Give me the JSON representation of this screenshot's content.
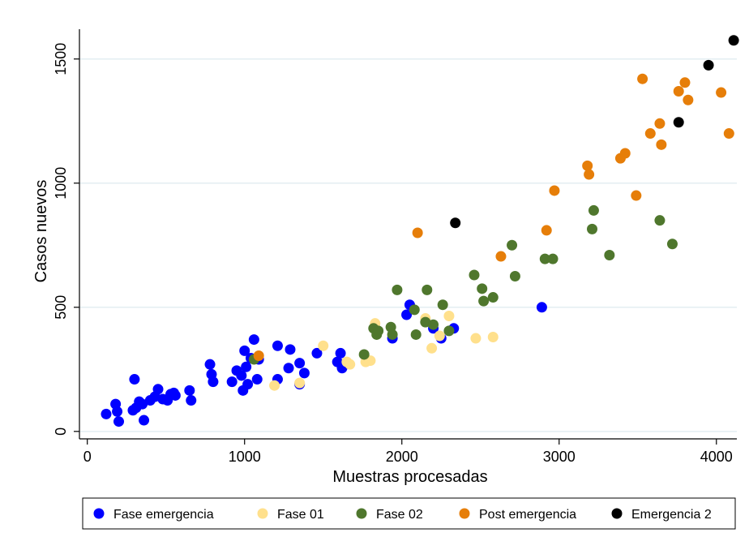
{
  "chart_data": {
    "type": "scatter",
    "title": "",
    "xlabel": "Muestras procesadas",
    "ylabel": "Casos nuevos",
    "xlim": [
      -50,
      4130
    ],
    "ylim": [
      -30,
      1620
    ],
    "x_ticks": [
      0,
      1000,
      2000,
      3000,
      4000
    ],
    "x_tick_labels": [
      "0",
      "1000",
      "2000",
      "3000",
      "4000"
    ],
    "y_ticks": [
      0,
      500,
      1000,
      1500
    ],
    "y_tick_labels": [
      "0",
      "500",
      "1000",
      "1500"
    ],
    "grid": "horizontal",
    "legend_position": "bottom",
    "series": [
      {
        "name": "Fase emergencia",
        "color": "#0000ff",
        "points": [
          [
            120,
            70
          ],
          [
            180,
            110
          ],
          [
            200,
            40
          ],
          [
            190,
            80
          ],
          [
            300,
            210
          ],
          [
            310,
            95
          ],
          [
            330,
            120
          ],
          [
            290,
            85
          ],
          [
            350,
            110
          ],
          [
            360,
            45
          ],
          [
            400,
            125
          ],
          [
            430,
            140
          ],
          [
            450,
            170
          ],
          [
            480,
            130
          ],
          [
            510,
            125
          ],
          [
            530,
            150
          ],
          [
            550,
            155
          ],
          [
            560,
            145
          ],
          [
            650,
            165
          ],
          [
            660,
            125
          ],
          [
            780,
            270
          ],
          [
            790,
            230
          ],
          [
            800,
            200
          ],
          [
            920,
            200
          ],
          [
            950,
            245
          ],
          [
            980,
            225
          ],
          [
            990,
            165
          ],
          [
            1000,
            325
          ],
          [
            1010,
            260
          ],
          [
            1020,
            190
          ],
          [
            1040,
            295
          ],
          [
            1060,
            370
          ],
          [
            1080,
            210
          ],
          [
            1090,
            290
          ],
          [
            1210,
            345
          ],
          [
            1210,
            210
          ],
          [
            1280,
            255
          ],
          [
            1290,
            330
          ],
          [
            1350,
            275
          ],
          [
            1350,
            190
          ],
          [
            1380,
            235
          ],
          [
            1460,
            315
          ],
          [
            1590,
            280
          ],
          [
            1610,
            315
          ],
          [
            1620,
            255
          ],
          [
            1940,
            375
          ],
          [
            2030,
            470
          ],
          [
            2050,
            510
          ],
          [
            2200,
            415
          ],
          [
            2250,
            375
          ],
          [
            2330,
            415
          ],
          [
            2890,
            500
          ]
        ]
      },
      {
        "name": "Fase 01",
        "color": "#ffe08c",
        "points": [
          [
            1190,
            185
          ],
          [
            1350,
            195
          ],
          [
            1500,
            345
          ],
          [
            1650,
            280
          ],
          [
            1670,
            270
          ],
          [
            1770,
            280
          ],
          [
            1800,
            285
          ],
          [
            1830,
            435
          ],
          [
            2150,
            455
          ],
          [
            2190,
            335
          ],
          [
            2240,
            385
          ],
          [
            2300,
            465
          ],
          [
            2470,
            375
          ],
          [
            2580,
            380
          ]
        ]
      },
      {
        "name": "Fase 02",
        "color": "#4f772d",
        "points": [
          [
            1060,
            290
          ],
          [
            1760,
            310
          ],
          [
            1820,
            415
          ],
          [
            1840,
            390
          ],
          [
            1850,
            405
          ],
          [
            1930,
            420
          ],
          [
            1940,
            390
          ],
          [
            1970,
            570
          ],
          [
            2080,
            490
          ],
          [
            2090,
            390
          ],
          [
            2150,
            440
          ],
          [
            2160,
            570
          ],
          [
            2200,
            430
          ],
          [
            2260,
            510
          ],
          [
            2300,
            405
          ],
          [
            2460,
            630
          ],
          [
            2510,
            575
          ],
          [
            2520,
            525
          ],
          [
            2580,
            540
          ],
          [
            2700,
            750
          ],
          [
            2720,
            625
          ],
          [
            2910,
            695
          ],
          [
            2960,
            695
          ],
          [
            3210,
            815
          ],
          [
            3220,
            890
          ],
          [
            3320,
            710
          ],
          [
            3640,
            850
          ],
          [
            3720,
            755
          ]
        ]
      },
      {
        "name": "Post emergencia",
        "color": "#e67e09",
        "points": [
          [
            1090,
            305
          ],
          [
            2100,
            800
          ],
          [
            2630,
            705
          ],
          [
            2920,
            810
          ],
          [
            2970,
            970
          ],
          [
            3180,
            1070
          ],
          [
            3190,
            1035
          ],
          [
            3390,
            1100
          ],
          [
            3420,
            1120
          ],
          [
            3490,
            950
          ],
          [
            3530,
            1420
          ],
          [
            3580,
            1200
          ],
          [
            3640,
            1240
          ],
          [
            3650,
            1155
          ],
          [
            3760,
            1370
          ],
          [
            3800,
            1405
          ],
          [
            3820,
            1335
          ],
          [
            4030,
            1365
          ],
          [
            4080,
            1200
          ]
        ]
      },
      {
        "name": "Emergencia 2",
        "color": "#000000",
        "points": [
          [
            2340,
            840
          ],
          [
            3760,
            1245
          ],
          [
            3950,
            1475
          ],
          [
            4110,
            1575
          ]
        ]
      }
    ]
  }
}
